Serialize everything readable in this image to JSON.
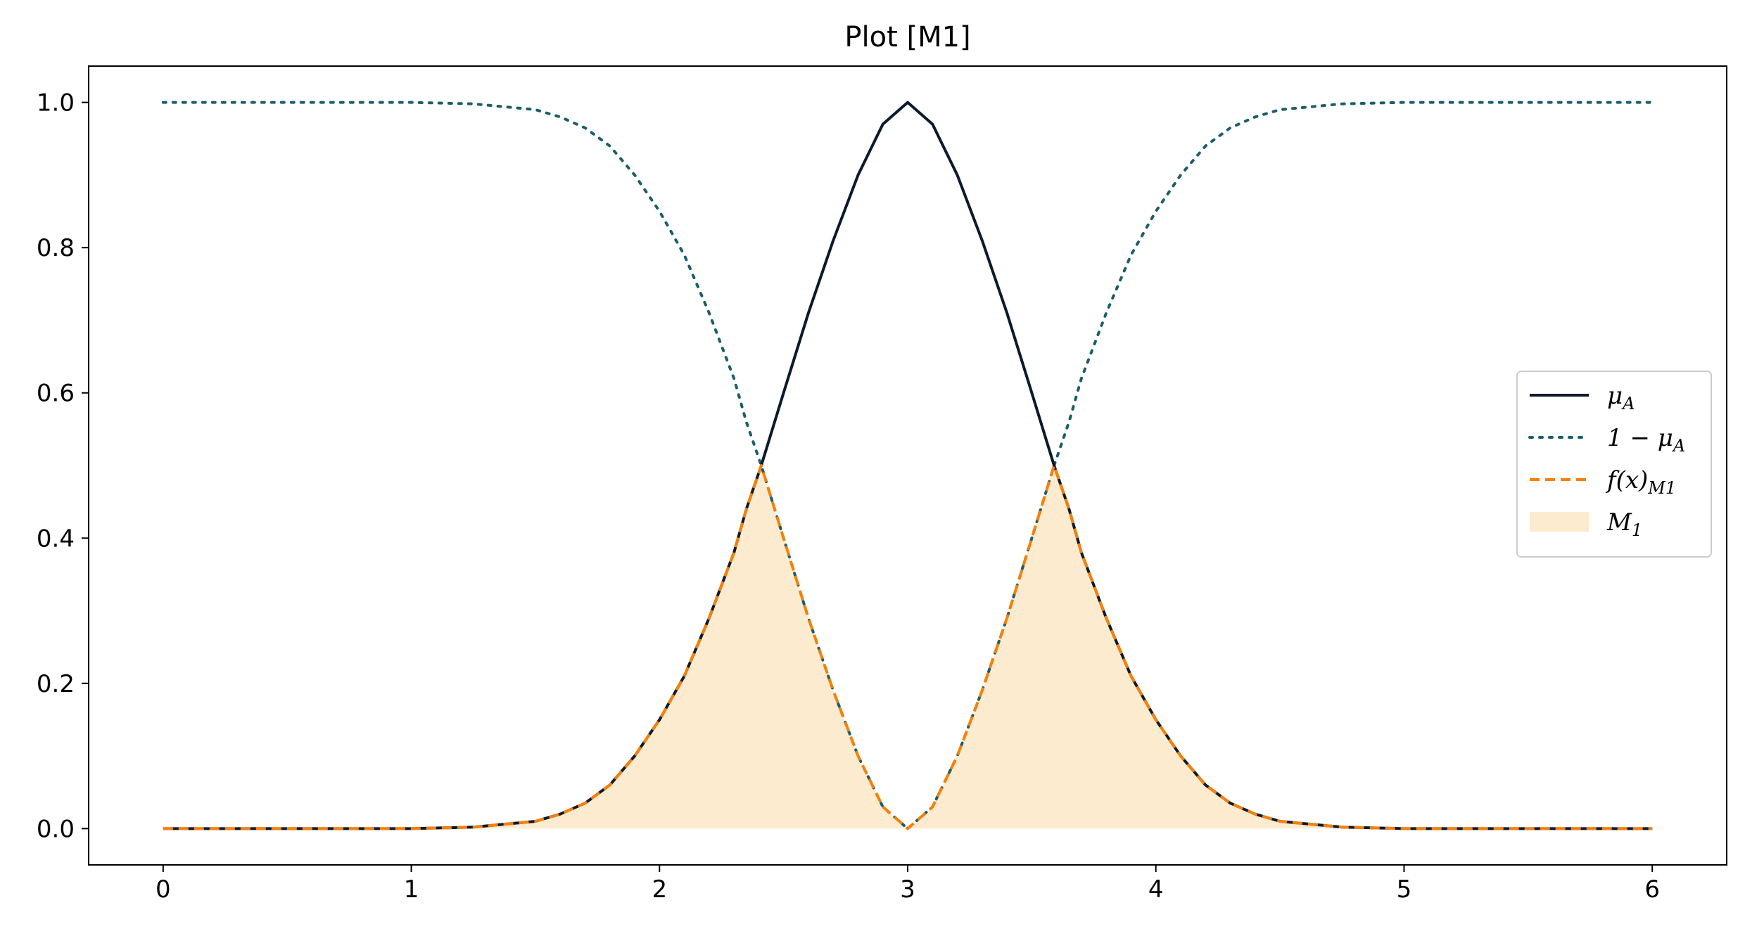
{
  "chart_data": {
    "type": "line",
    "title": "Plot [M1]",
    "xlabel": "",
    "ylabel": "",
    "xlim": [
      -0.3,
      6.3
    ],
    "ylim": [
      -0.05,
      1.05
    ],
    "x_ticks": [
      0,
      1,
      2,
      3,
      4,
      5,
      6
    ],
    "x_tick_labels": [
      "0",
      "1",
      "2",
      "3",
      "4",
      "5",
      "6"
    ],
    "y_ticks": [
      0.0,
      0.2,
      0.4,
      0.6,
      0.8,
      1.0
    ],
    "y_tick_labels": [
      "0.0",
      "0.2",
      "0.4",
      "0.6",
      "0.8",
      "1.0"
    ],
    "grid": false,
    "legend_position": "center-right",
    "x": [
      0,
      0.25,
      0.5,
      0.75,
      1.0,
      1.25,
      1.5,
      1.6,
      1.7,
      1.8,
      1.9,
      2.0,
      2.1,
      2.2,
      2.3,
      2.35,
      2.41,
      2.5,
      2.6,
      2.7,
      2.8,
      2.9,
      3.0,
      3.1,
      3.2,
      3.3,
      3.4,
      3.5,
      3.59,
      3.65,
      3.7,
      3.8,
      3.9,
      4.0,
      4.1,
      4.2,
      4.3,
      4.4,
      4.5,
      4.75,
      5.0,
      5.25,
      5.5,
      5.75,
      6.0
    ],
    "series": [
      {
        "name": "μ_A",
        "style": "solid",
        "color": "#0b1a2c",
        "values": [
          0.0,
          0.0,
          0.0,
          0.0,
          0.0,
          0.002,
          0.01,
          0.02,
          0.035,
          0.06,
          0.1,
          0.15,
          0.21,
          0.29,
          0.38,
          0.44,
          0.5,
          0.6,
          0.71,
          0.81,
          0.9,
          0.97,
          1.0,
          0.97,
          0.9,
          0.81,
          0.71,
          0.6,
          0.5,
          0.44,
          0.38,
          0.29,
          0.21,
          0.15,
          0.1,
          0.06,
          0.035,
          0.02,
          0.01,
          0.002,
          0.0,
          0.0,
          0.0,
          0.0,
          0.0
        ]
      },
      {
        "name": "1 − μ_A",
        "style": "dotted",
        "color": "#1a5e6a",
        "values": [
          1.0,
          1.0,
          1.0,
          1.0,
          1.0,
          0.998,
          0.99,
          0.98,
          0.965,
          0.94,
          0.9,
          0.85,
          0.79,
          0.71,
          0.62,
          0.56,
          0.5,
          0.4,
          0.29,
          0.19,
          0.1,
          0.03,
          0.0,
          0.03,
          0.1,
          0.19,
          0.29,
          0.4,
          0.5,
          0.56,
          0.62,
          0.71,
          0.79,
          0.85,
          0.9,
          0.94,
          0.965,
          0.98,
          0.99,
          0.998,
          1.0,
          1.0,
          1.0,
          1.0,
          1.0
        ]
      },
      {
        "name": "f(x)_M1",
        "style": "dashed",
        "color": "#f5800a",
        "values": [
          0.0,
          0.0,
          0.0,
          0.0,
          0.0,
          0.002,
          0.01,
          0.02,
          0.035,
          0.06,
          0.1,
          0.15,
          0.21,
          0.29,
          0.38,
          0.44,
          0.5,
          0.4,
          0.29,
          0.19,
          0.1,
          0.03,
          0.0,
          0.03,
          0.1,
          0.19,
          0.29,
          0.4,
          0.5,
          0.44,
          0.38,
          0.29,
          0.21,
          0.15,
          0.1,
          0.06,
          0.035,
          0.02,
          0.01,
          0.002,
          0.0,
          0.0,
          0.0,
          0.0,
          0.0
        ]
      }
    ],
    "fill": {
      "name": "M_1",
      "color": "#fdebd0",
      "under_series": "f(x)_M1"
    },
    "legend": [
      {
        "label_main": "μ",
        "label_sub": "A",
        "kind": "solid",
        "color": "#0b1a2c"
      },
      {
        "label_main": "1 − μ",
        "label_sub": "A",
        "kind": "dotted",
        "color": "#1a5e6a"
      },
      {
        "label_main": "f(x)",
        "label_sub": "M1",
        "kind": "dashed",
        "color": "#f5800a"
      },
      {
        "label_main": "M",
        "label_sub": "1",
        "kind": "patch",
        "color": "#fdebd0"
      }
    ]
  }
}
